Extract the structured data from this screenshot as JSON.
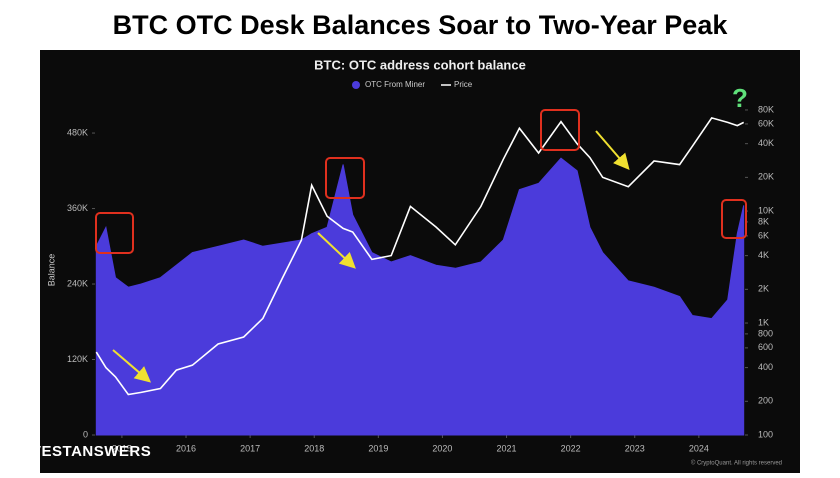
{
  "headline": "BTC OTC Desk Balances Soar to Two-Year Peak",
  "brand": "INVESTANSWERS",
  "chart_data": {
    "type": "area",
    "title": "BTC: OTC address cohort balance",
    "ylabel": "Balance",
    "source": "© CryptoQuant. All rights reserved",
    "annotations": [
      "?"
    ],
    "x": [
      2014.6,
      2014.75,
      2014.9,
      2015.1,
      2015.3,
      2015.6,
      2015.85,
      2016.1,
      2016.5,
      2016.9,
      2017.2,
      2017.5,
      2017.8,
      2017.96,
      2018.2,
      2018.45,
      2018.6,
      2018.9,
      2019.2,
      2019.5,
      2019.9,
      2020.2,
      2020.6,
      2020.95,
      2021.2,
      2021.5,
      2021.85,
      2022.1,
      2022.3,
      2022.5,
      2022.9,
      2023.3,
      2023.7,
      2023.9,
      2024.2,
      2024.45,
      2024.6,
      2024.7
    ],
    "series": [
      {
        "name": "OTC From Miner",
        "color": "#4b3bdb",
        "values": [
          300000,
          330000,
          250000,
          235000,
          240000,
          250000,
          270000,
          290000,
          300000,
          310000,
          300000,
          305000,
          310000,
          320000,
          330000,
          430000,
          350000,
          290000,
          275000,
          285000,
          270000,
          265000,
          275000,
          310000,
          390000,
          400000,
          440000,
          420000,
          330000,
          290000,
          245000,
          235000,
          220000,
          190000,
          185000,
          215000,
          320000,
          365000
        ]
      },
      {
        "name": "Price",
        "color": "#ffffff",
        "axis": "y2",
        "values": [
          550,
          400,
          330,
          230,
          240,
          260,
          380,
          420,
          650,
          750,
          1100,
          2500,
          5500,
          17000,
          9000,
          7000,
          6500,
          3700,
          4000,
          11000,
          7200,
          5000,
          11000,
          29000,
          55000,
          33000,
          63000,
          40000,
          30000,
          20000,
          16500,
          28000,
          26000,
          38000,
          68000,
          62000,
          58000,
          62000
        ]
      }
    ],
    "xlim": [
      2014.58,
      2024.72
    ],
    "xticks": [
      2015,
      2016,
      2017,
      2018,
      2019,
      2020,
      2021,
      2022,
      2023,
      2024
    ],
    "ylim": [
      0,
      530000
    ],
    "yticks": [
      0,
      {
        "value": 120000,
        "label": "120K"
      },
      {
        "value": 240000,
        "label": "240K"
      },
      {
        "value": 360000,
        "label": "360K"
      },
      {
        "value": 480000,
        "label": "480K"
      }
    ],
    "y2lim": [
      100,
      95000
    ],
    "y2scale": "log",
    "y2ticks": [
      100,
      200,
      400,
      600,
      800,
      {
        "value": 1000,
        "label": "1K"
      },
      {
        "value": 2000,
        "label": "2K"
      },
      {
        "value": 4000,
        "label": "4K"
      },
      {
        "value": 6000,
        "label": "6K"
      },
      {
        "value": 8000,
        "label": "8K"
      },
      {
        "value": 10000,
        "label": "10K"
      },
      {
        "value": 20000,
        "label": "20K"
      },
      {
        "value": 40000,
        "label": "40K"
      },
      {
        "value": 60000,
        "label": "60K"
      },
      {
        "value": 80000,
        "label": "80K"
      }
    ]
  }
}
